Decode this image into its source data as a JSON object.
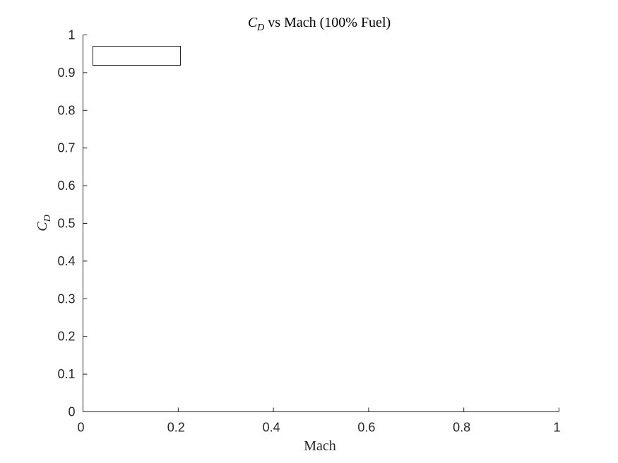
{
  "chart_data": {
    "type": "line",
    "title_main": "C",
    "title_sub": "D",
    "title_rest": " vs Mach (100% Fuel)",
    "xlabel": "Mach",
    "ylabel_main": "C",
    "ylabel_sub": "D",
    "xlim": [
      0,
      1
    ],
    "ylim": [
      0,
      1
    ],
    "xticks": [
      0,
      0.2,
      0.4,
      0.6,
      0.8,
      1
    ],
    "xtick_labels": [
      "0",
      "0.2",
      "0.4",
      "0.6",
      "0.8",
      "1"
    ],
    "yticks": [
      0,
      0.1,
      0.2,
      0.3,
      0.4,
      0.5,
      0.6,
      0.7,
      0.8,
      0.9,
      1
    ],
    "ytick_labels": [
      "0",
      "0.1",
      "0.2",
      "0.3",
      "0.4",
      "0.5",
      "0.6",
      "0.7",
      "0.8",
      "0.9",
      "1"
    ],
    "grid": false,
    "series": [],
    "legend": {
      "placement": "top-left",
      "entries": []
    },
    "colors": {
      "axis": "#262626",
      "title": "#000000",
      "background": "#ffffff"
    }
  }
}
